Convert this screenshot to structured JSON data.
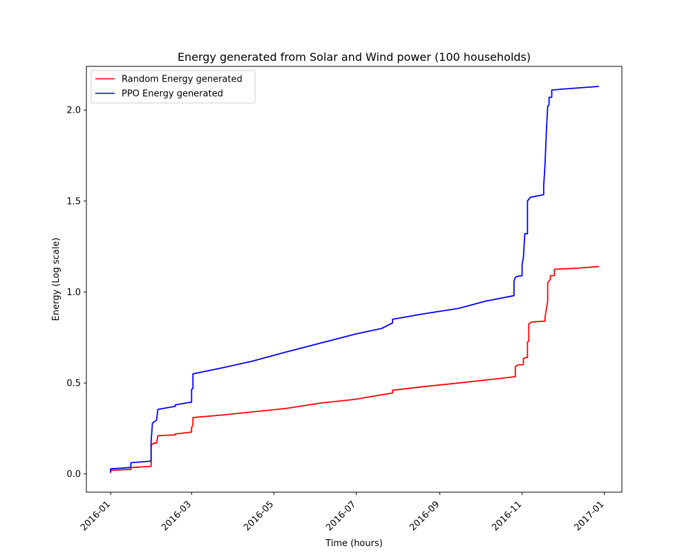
{
  "chart_data": {
    "type": "line",
    "title": "Energy generated from Solar and Wind power (100 households)",
    "xlabel": "Time (hours)",
    "ylabel": "Energy (Log scale)",
    "xlim": [
      "2015-12-14",
      "2017-01-14"
    ],
    "ylim": [
      -0.1,
      2.24
    ],
    "x_ticks": [
      "2016-01",
      "2016-03",
      "2016-05",
      "2016-07",
      "2016-09",
      "2016-11",
      "2017-01"
    ],
    "y_ticks": [
      "0.0",
      "0.5",
      "1.0",
      "1.5",
      "2.0"
    ],
    "legend_position": "top-left",
    "grid": false,
    "series": [
      {
        "name": "Random Energy generated",
        "color": "#ff0000",
        "points": [
          [
            "2016-01-01",
            0.005
          ],
          [
            "2016-01-01",
            0.02
          ],
          [
            "2016-01-16",
            0.025
          ],
          [
            "2016-01-16",
            0.035
          ],
          [
            "2016-01-31",
            0.042
          ],
          [
            "2016-01-31",
            0.16
          ],
          [
            "2016-02-02",
            0.168
          ],
          [
            "2016-02-02",
            0.17
          ],
          [
            "2016-02-04",
            0.17
          ],
          [
            "2016-02-05",
            0.21
          ],
          [
            "2016-02-18",
            0.215
          ],
          [
            "2016-02-18",
            0.22
          ],
          [
            "2016-03-01",
            0.23
          ],
          [
            "2016-03-01",
            0.255
          ],
          [
            "2016-03-02",
            0.27
          ],
          [
            "2016-03-02",
            0.31
          ],
          [
            "2016-03-25",
            0.325
          ],
          [
            "2016-04-20",
            0.345
          ],
          [
            "2016-05-10",
            0.36
          ],
          [
            "2016-06-05",
            0.39
          ],
          [
            "2016-06-30",
            0.41
          ],
          [
            "2016-07-20",
            0.435
          ],
          [
            "2016-07-28",
            0.445
          ],
          [
            "2016-07-28",
            0.46
          ],
          [
            "2016-08-20",
            0.48
          ],
          [
            "2016-09-15",
            0.5
          ],
          [
            "2016-10-10",
            0.52
          ],
          [
            "2016-10-27",
            0.535
          ],
          [
            "2016-10-27",
            0.59
          ],
          [
            "2016-10-29",
            0.6
          ],
          [
            "2016-11-02",
            0.6
          ],
          [
            "2016-11-02",
            0.635
          ],
          [
            "2016-11-04",
            0.64
          ],
          [
            "2016-11-05",
            0.64
          ],
          [
            "2016-11-05",
            0.725
          ],
          [
            "2016-11-06",
            0.73
          ],
          [
            "2016-11-06",
            0.825
          ],
          [
            "2016-11-08",
            0.835
          ],
          [
            "2016-11-18",
            0.84
          ],
          [
            "2016-11-18",
            0.86
          ],
          [
            "2016-11-20",
            0.95
          ],
          [
            "2016-11-20",
            1.05
          ],
          [
            "2016-11-22",
            1.07
          ],
          [
            "2016-11-22",
            1.09
          ],
          [
            "2016-11-25",
            1.09
          ],
          [
            "2016-11-25",
            1.125
          ],
          [
            "2016-12-10",
            1.13
          ],
          [
            "2016-12-28",
            1.14
          ]
        ]
      },
      {
        "name": "PPO Energy generated",
        "color": "#0000ff",
        "points": [
          [
            "2016-01-01",
            0.01
          ],
          [
            "2016-01-01",
            0.028
          ],
          [
            "2016-01-15",
            0.035
          ],
          [
            "2016-01-16",
            0.04
          ],
          [
            "2016-01-16",
            0.062
          ],
          [
            "2016-01-30",
            0.07
          ],
          [
            "2016-01-31",
            0.072
          ],
          [
            "2016-01-31",
            0.18
          ],
          [
            "2016-02-01",
            0.28
          ],
          [
            "2016-02-03",
            0.29
          ],
          [
            "2016-02-04",
            0.295
          ],
          [
            "2016-02-05",
            0.355
          ],
          [
            "2016-02-18",
            0.372
          ],
          [
            "2016-02-18",
            0.38
          ],
          [
            "2016-03-01",
            0.395
          ],
          [
            "2016-03-01",
            0.465
          ],
          [
            "2016-03-02",
            0.47
          ],
          [
            "2016-03-02",
            0.55
          ],
          [
            "2016-03-25",
            0.585
          ],
          [
            "2016-04-15",
            0.62
          ],
          [
            "2016-05-10",
            0.67
          ],
          [
            "2016-06-05",
            0.72
          ],
          [
            "2016-07-01",
            0.77
          ],
          [
            "2016-07-20",
            0.8
          ],
          [
            "2016-07-28",
            0.83
          ],
          [
            "2016-07-28",
            0.85
          ],
          [
            "2016-08-20",
            0.88
          ],
          [
            "2016-09-15",
            0.91
          ],
          [
            "2016-10-05",
            0.95
          ],
          [
            "2016-10-26",
            0.98
          ],
          [
            "2016-10-26",
            1.06
          ],
          [
            "2016-10-27",
            1.08
          ],
          [
            "2016-10-28",
            1.085
          ],
          [
            "2016-11-01",
            1.09
          ],
          [
            "2016-11-01",
            1.15
          ],
          [
            "2016-11-02",
            1.19
          ],
          [
            "2016-11-03",
            1.32
          ],
          [
            "2016-11-05",
            1.32
          ],
          [
            "2016-11-05",
            1.5
          ],
          [
            "2016-11-07",
            1.52
          ],
          [
            "2016-11-17",
            1.535
          ],
          [
            "2016-11-17",
            1.58
          ],
          [
            "2016-11-18",
            1.7
          ],
          [
            "2016-11-19",
            1.88
          ],
          [
            "2016-11-20",
            2.02
          ],
          [
            "2016-11-21",
            2.03
          ],
          [
            "2016-11-21",
            2.07
          ],
          [
            "2016-11-23",
            2.07
          ],
          [
            "2016-11-23",
            2.11
          ],
          [
            "2016-12-01",
            2.115
          ],
          [
            "2016-12-28",
            2.13
          ]
        ]
      }
    ]
  }
}
